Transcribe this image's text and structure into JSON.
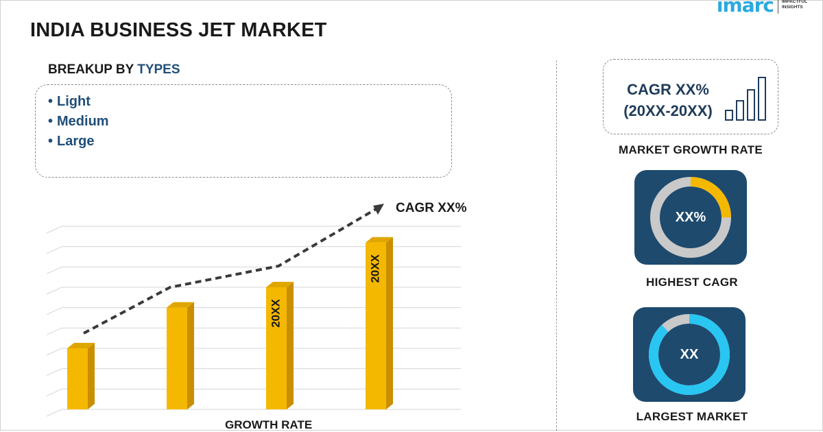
{
  "brand": {
    "logo_text": "imarc",
    "tagline": "IMPACTFUL INSIGHTS"
  },
  "title": "INDIA BUSINESS JET MARKET",
  "breakup": {
    "heading_prefix": "BREAKUP BY ",
    "heading_highlight": "TYPES",
    "items": [
      "Light",
      "Medium",
      "Large"
    ]
  },
  "chart_data": {
    "type": "bar",
    "categories": [
      "",
      "",
      "",
      ""
    ],
    "values": [
      3,
      5,
      6,
      8.2
    ],
    "bar_labels": [
      "",
      "",
      "20XX",
      "20XX"
    ],
    "trend_label": "CAGR XX%",
    "xlabel": "GROWTH RATE",
    "ylabel": "",
    "ylim": [
      0,
      9
    ],
    "grid": true,
    "colors": {
      "bar": "#f5b800",
      "bar_side": "#c98f00",
      "trend": "#3a3a3a"
    }
  },
  "growth_rate": {
    "value": "CAGR XX%",
    "period": "(20XX-20XX)",
    "label": "MARKET GROWTH RATE",
    "icon": "bar-growth-icon"
  },
  "highest_cagr": {
    "value": "XX%",
    "label": "HIGHEST CAGR",
    "fill": 0.25,
    "color": "#f5b800"
  },
  "largest_market": {
    "value": "XX",
    "label": "LARGEST MARKET",
    "fill": 0.88,
    "color": "#29c6f2"
  },
  "colors": {
    "navy": "#1e4a6e",
    "text_blue": "#1f4e79",
    "accent_yellow": "#f5b800",
    "accent_cyan": "#29c6f2"
  }
}
